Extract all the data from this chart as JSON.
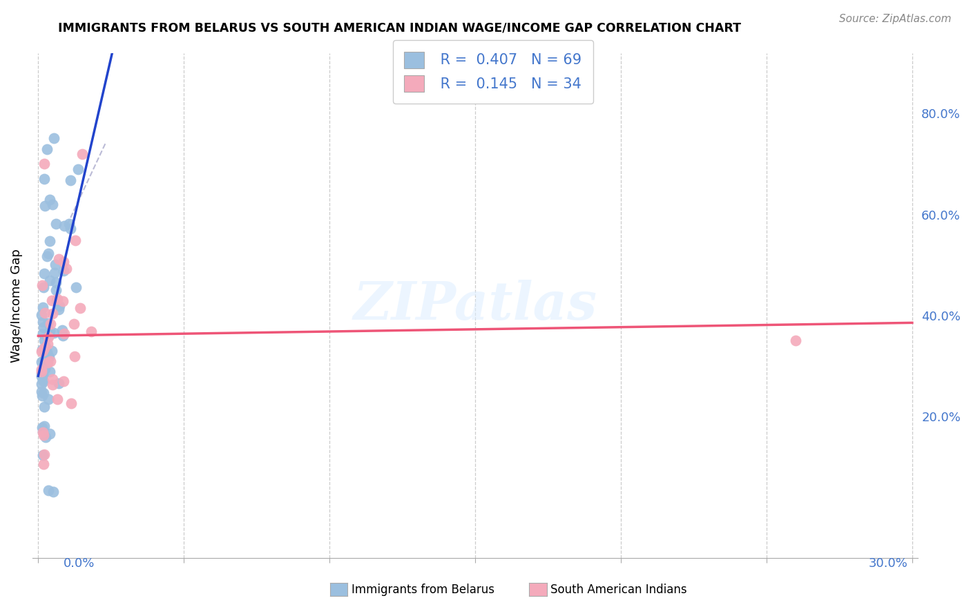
{
  "title": "IMMIGRANTS FROM BELARUS VS SOUTH AMERICAN INDIAN WAGE/INCOME GAP CORRELATION CHART",
  "source": "Source: ZipAtlas.com",
  "ylabel": "Wage/Income Gap",
  "color_blue": "#9bbfdf",
  "color_pink": "#f4aabb",
  "color_line_blue": "#2244cc",
  "color_line_pink": "#ee5577",
  "color_text_blue": "#4477cc",
  "legend_R1": "0.407",
  "legend_N1": "69",
  "legend_R2": "0.145",
  "legend_N2": "34",
  "right_yticks": [
    0.2,
    0.4,
    0.6,
    0.8
  ],
  "right_yticklabels": [
    "20.0%",
    "40.0%",
    "60.0%",
    "80.0%"
  ],
  "xlim": [
    -0.002,
    0.302
  ],
  "ylim": [
    -0.08,
    0.92
  ],
  "blue_R": 0.407,
  "pink_R": 0.145,
  "n_blue": 69,
  "n_pink": 34
}
